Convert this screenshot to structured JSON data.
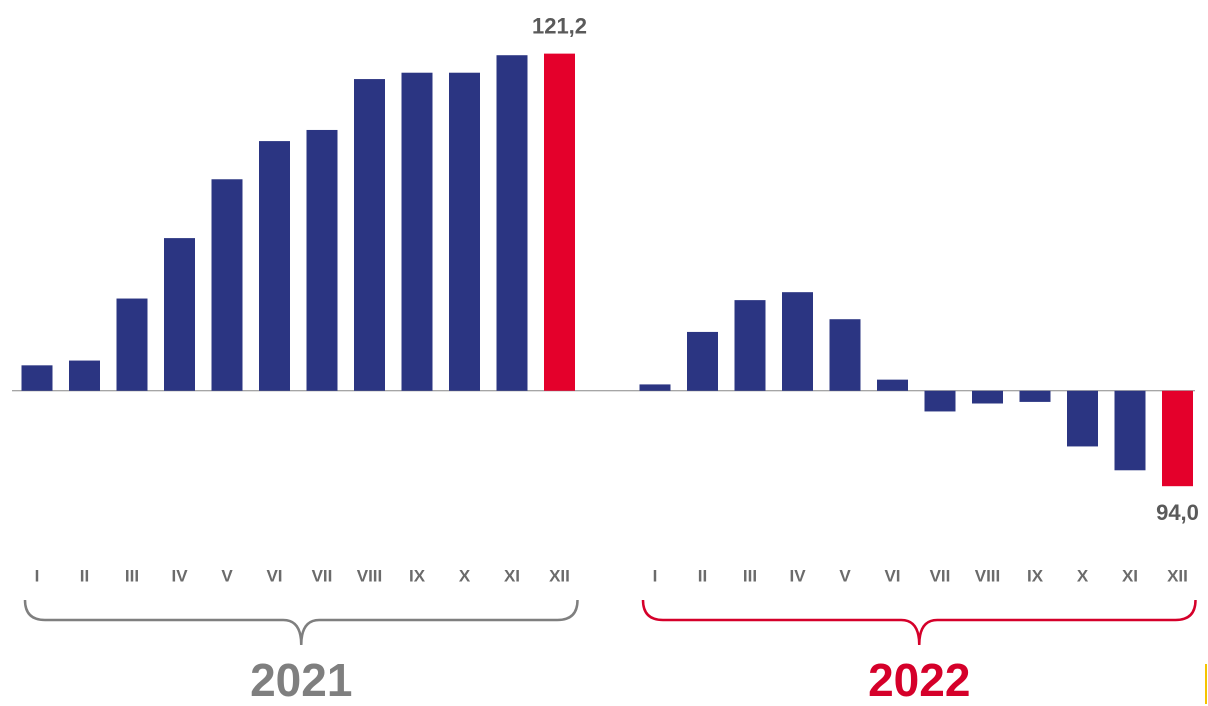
{
  "chart_data": {
    "type": "bar",
    "baseline": 100,
    "ylim": [
      92,
      123
    ],
    "highlight_color": "#e4002b",
    "series": [
      {
        "name": "2021",
        "color": "#2b3582",
        "name_color": "#7f7f7f",
        "categories": [
          "I",
          "II",
          "III",
          "IV",
          "V",
          "VI",
          "VII",
          "VIII",
          "IX",
          "X",
          "XI",
          "XII"
        ],
        "values": [
          101.6,
          101.9,
          105.8,
          109.6,
          113.3,
          115.7,
          116.4,
          119.6,
          120.0,
          120.0,
          121.1,
          121.2
        ],
        "value_labels": [
          null,
          null,
          null,
          null,
          null,
          null,
          null,
          null,
          null,
          null,
          null,
          "121,2"
        ]
      },
      {
        "name": "2022",
        "color": "#2b3582",
        "name_color": "#d5002a",
        "categories": [
          "I",
          "II",
          "III",
          "IV",
          "V",
          "VI",
          "VII",
          "VIII",
          "IX",
          "X",
          "XI",
          "XII"
        ],
        "values": [
          100.4,
          103.7,
          105.7,
          106.2,
          104.5,
          100.7,
          98.7,
          99.2,
          99.3,
          96.5,
          95.0,
          94.0
        ],
        "value_labels": [
          null,
          null,
          null,
          null,
          null,
          null,
          null,
          null,
          null,
          null,
          null,
          "94,0"
        ]
      }
    ]
  }
}
